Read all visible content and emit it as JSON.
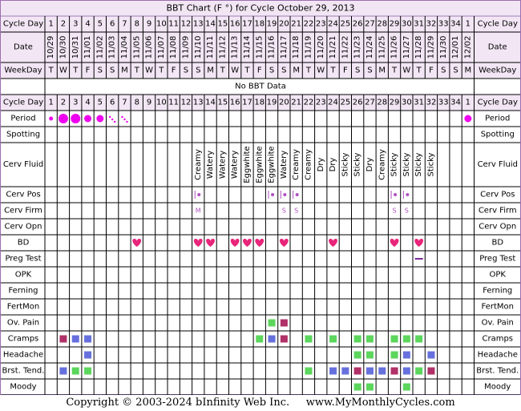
{
  "title": "BBT Chart (F °) for Cycle October 29, 2013",
  "no_data_text": "No BBT Data",
  "copyright": "Copyright © 2003-2024 bInfinity Web Inc.",
  "site": "www.MyMonthlyCycles.com",
  "row_labels": {
    "cycle_day": "Cycle Day",
    "date": "Date",
    "weekday": "WeekDay",
    "period": "Period",
    "spotting": "Spotting",
    "cerv_fluid": "Cerv Fluid",
    "cerv_pos": "Cerv Pos",
    "cerv_firm": "Cerv Firm",
    "cerv_opn": "Cerv Opn",
    "bd": "BD",
    "preg_test": "Preg Test",
    "opk": "OPK",
    "ferning": "Ferning",
    "fertmon": "FertMon",
    "ov_pain": "Ov. Pain",
    "cramps": "Cramps",
    "headache": "Headache",
    "brst_tend": "Brst. Tend.",
    "moody": "Moody"
  },
  "colors": {
    "border": "#9b6fb0",
    "header_bg": "#f2e6f4",
    "grid": "#000000",
    "period": "#ee00ee",
    "heart": "#e8257a",
    "cervpos": "#b050c0",
    "cervfirm": "#b050c0",
    "pregtest": "#7a2a9a",
    "green": "#5cd65c",
    "blue": "#6670dd",
    "maroon": "#b03068"
  },
  "chart_data": {
    "type": "table",
    "cycle_days": [
      "1",
      "2",
      "3",
      "4",
      "5",
      "6",
      "7",
      "8",
      "9",
      "10",
      "11",
      "12",
      "13",
      "14",
      "15",
      "16",
      "17",
      "18",
      "19",
      "20",
      "21",
      "22",
      "23",
      "24",
      "25",
      "26",
      "27",
      "28",
      "29",
      "30",
      "31",
      "32",
      "33",
      "34",
      "1"
    ],
    "dates": [
      "10/29",
      "10/30",
      "10/31",
      "11/01",
      "11/02",
      "11/03",
      "11/04",
      "11/05",
      "11/06",
      "11/07",
      "11/08",
      "11/09",
      "11/10",
      "11/11",
      "11/12",
      "11/13",
      "11/14",
      "11/15",
      "11/16",
      "11/17",
      "11/18",
      "11/19",
      "11/20",
      "11/21",
      "11/22",
      "11/23",
      "11/24",
      "11/25",
      "11/26",
      "11/27",
      "11/28",
      "11/29",
      "11/30",
      "12/01",
      "12/02"
    ],
    "weekdays": [
      "T",
      "W",
      "T",
      "F",
      "S",
      "S",
      "M",
      "T",
      "W",
      "T",
      "F",
      "S",
      "S",
      "M",
      "T",
      "W",
      "T",
      "F",
      "S",
      "S",
      "M",
      "T",
      "W",
      "T",
      "F",
      "S",
      "S",
      "M",
      "T",
      "W",
      "T",
      "F",
      "S",
      "S",
      "M"
    ],
    "period": [
      "small",
      "large",
      "large",
      "medium",
      "medium",
      "spotting",
      "spotting",
      "",
      "",
      "",
      "",
      "",
      "",
      "",
      "",
      "",
      "",
      "",
      "",
      "",
      "",
      "",
      "",
      "",
      "",
      "",
      "",
      "",
      "",
      "",
      "",
      "",
      "",
      "",
      "medium"
    ],
    "spotting": [
      "",
      "",
      "",
      "",
      "",
      "",
      "",
      "",
      "",
      "",
      "",
      "",
      "",
      "",
      "",
      "",
      "",
      "",
      "",
      "",
      "",
      "",
      "",
      "",
      "",
      "",
      "",
      "",
      "",
      "",
      "",
      "",
      "",
      "",
      ""
    ],
    "cerv_fluid": [
      "",
      "",
      "",
      "",
      "",
      "",
      "",
      "",
      "",
      "",
      "",
      "",
      "Creamy",
      "Watery",
      "Watery",
      "Watery",
      "Eggwhite",
      "Eggwhite",
      "Eggwhite",
      "Watery",
      "Creamy",
      "Creamy",
      "Dry",
      "Dry",
      "Sticky",
      "Sticky",
      "Dry",
      "Creamy",
      "Sticky",
      "Sticky",
      "Sticky",
      "Sticky",
      "",
      "",
      ""
    ],
    "cerv_pos": [
      "",
      "",
      "",
      "",
      "",
      "",
      "",
      "",
      "",
      "",
      "",
      "",
      "med",
      "",
      "",
      "",
      "",
      "",
      "med",
      "med",
      "med",
      "",
      "",
      "",
      "",
      "",
      "",
      "",
      "med",
      "med",
      "",
      "",
      "",
      "",
      ""
    ],
    "cerv_firm": [
      "",
      "",
      "",
      "",
      "",
      "",
      "",
      "",
      "",
      "",
      "",
      "",
      "M",
      "",
      "",
      "",
      "",
      "",
      "",
      "S",
      "S",
      "",
      "",
      "",
      "",
      "",
      "",
      "",
      "S",
      "S",
      "",
      "",
      "",
      "",
      ""
    ],
    "cerv_opn": [
      "",
      "",
      "",
      "",
      "",
      "",
      "",
      "",
      "",
      "",
      "",
      "",
      "",
      "",
      "",
      "",
      "",
      "",
      "",
      "",
      "",
      "",
      "",
      "",
      "",
      "",
      "",
      "",
      "",
      "",
      "",
      "",
      "",
      "",
      ""
    ],
    "bd": [
      "",
      "",
      "",
      "",
      "",
      "",
      "",
      "Y",
      "",
      "",
      "",
      "",
      "Y",
      "Y",
      "",
      "Y",
      "Y",
      "Y",
      "",
      "Y",
      "",
      "",
      "",
      "Y",
      "",
      "",
      "",
      "",
      "Y",
      "",
      "Y",
      "",
      "",
      "",
      ""
    ],
    "preg_test": [
      "",
      "",
      "",
      "",
      "",
      "",
      "",
      "",
      "",
      "",
      "",
      "",
      "",
      "",
      "",
      "",
      "",
      "",
      "",
      "",
      "",
      "",
      "",
      "",
      "",
      "",
      "",
      "",
      "",
      "",
      "neg",
      "",
      "",
      "",
      ""
    ],
    "opk": [
      "",
      "",
      "",
      "",
      "",
      "",
      "",
      "",
      "",
      "",
      "",
      "",
      "",
      "",
      "",
      "",
      "",
      "",
      "",
      "",
      "",
      "",
      "",
      "",
      "",
      "",
      "",
      "",
      "",
      "",
      "",
      "",
      "",
      "",
      ""
    ],
    "ferning": [
      "",
      "",
      "",
      "",
      "",
      "",
      "",
      "",
      "",
      "",
      "",
      "",
      "",
      "",
      "",
      "",
      "",
      "",
      "",
      "",
      "",
      "",
      "",
      "",
      "",
      "",
      "",
      "",
      "",
      "",
      "",
      "",
      "",
      "",
      ""
    ],
    "fertmon": [
      "",
      "",
      "",
      "",
      "",
      "",
      "",
      "",
      "",
      "",
      "",
      "",
      "",
      "",
      "",
      "",
      "",
      "",
      "",
      "",
      "",
      "",
      "",
      "",
      "",
      "",
      "",
      "",
      "",
      "",
      "",
      "",
      "",
      "",
      ""
    ],
    "ov_pain": [
      "",
      "",
      "",
      "",
      "",
      "",
      "",
      "",
      "",
      "",
      "",
      "",
      "",
      "",
      "",
      "",
      "",
      "",
      "green",
      "maroon",
      "",
      "",
      "",
      "",
      "",
      "",
      "",
      "",
      "",
      "",
      "",
      "",
      "",
      "",
      ""
    ],
    "cramps": [
      "",
      "maroon",
      "blue",
      "blue",
      "",
      "",
      "",
      "",
      "",
      "",
      "",
      "",
      "",
      "",
      "",
      "",
      "",
      "green",
      "blue",
      "maroon",
      "",
      "green",
      "",
      "green",
      "",
      "green",
      "green",
      "",
      "green",
      "green",
      "green",
      "",
      "",
      "",
      ""
    ],
    "headache": [
      "",
      "",
      "",
      "blue",
      "",
      "",
      "",
      "",
      "",
      "",
      "",
      "",
      "",
      "",
      "",
      "",
      "",
      "",
      "",
      "",
      "",
      "",
      "",
      "",
      "",
      "green",
      "green",
      "",
      "green",
      "blue",
      "",
      "blue",
      "",
      "",
      ""
    ],
    "brst_tend": [
      "",
      "blue",
      "green",
      "green",
      "",
      "",
      "",
      "",
      "",
      "",
      "",
      "",
      "",
      "",
      "",
      "",
      "",
      "",
      "",
      "",
      "",
      "green",
      "",
      "blue",
      "blue",
      "maroon",
      "blue",
      "blue",
      "maroon",
      "blue",
      "green",
      "maroon",
      "",
      "",
      ""
    ],
    "moody": [
      "",
      "",
      "",
      "",
      "",
      "",
      "",
      "",
      "",
      "",
      "",
      "",
      "",
      "",
      "",
      "",
      "",
      "",
      "",
      "",
      "",
      "",
      "",
      "",
      "",
      "green",
      "green",
      "",
      "",
      "green",
      "",
      "",
      "",
      "",
      ""
    ]
  }
}
